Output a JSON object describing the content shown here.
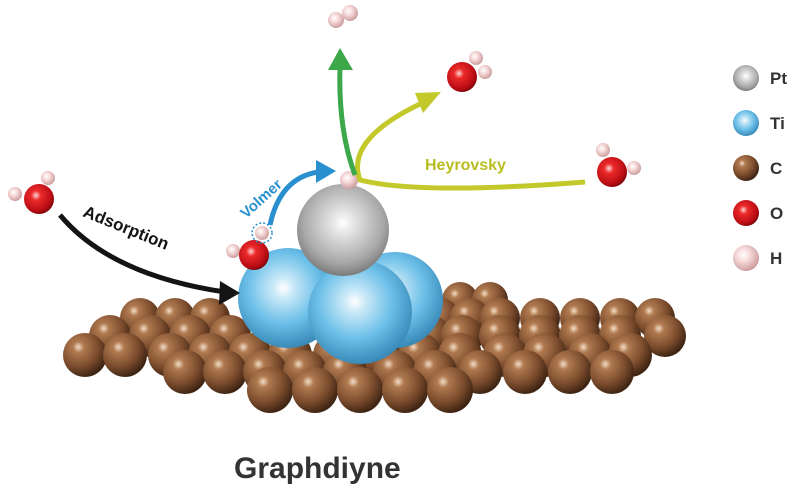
{
  "figure": {
    "substrate_label": "Graphdiyne",
    "steps": {
      "adsorption": "Adsorption",
      "volmer": "Volmer",
      "heyrovsky": "Heyrovsky"
    }
  },
  "legend": [
    {
      "symbol": "Pt",
      "color": "#b9b9b9",
      "icon": "pt-atom-icon"
    },
    {
      "symbol": "Ti",
      "color": "#5cb8e6",
      "icon": "ti-atom-icon"
    },
    {
      "symbol": "C",
      "color": "#8a5a38",
      "icon": "c-atom-icon"
    },
    {
      "symbol": "O",
      "color": "#d8141c",
      "icon": "o-atom-icon"
    },
    {
      "symbol": "H",
      "color": "#f2c4c4",
      "icon": "h-atom-icon"
    }
  ],
  "colors": {
    "adsorption_arrow": "#141414",
    "volmer_arrow": "#2a8fcf",
    "h2_arrow": "#3da84a",
    "heyrovsky_arrow": "#c3c92a"
  }
}
